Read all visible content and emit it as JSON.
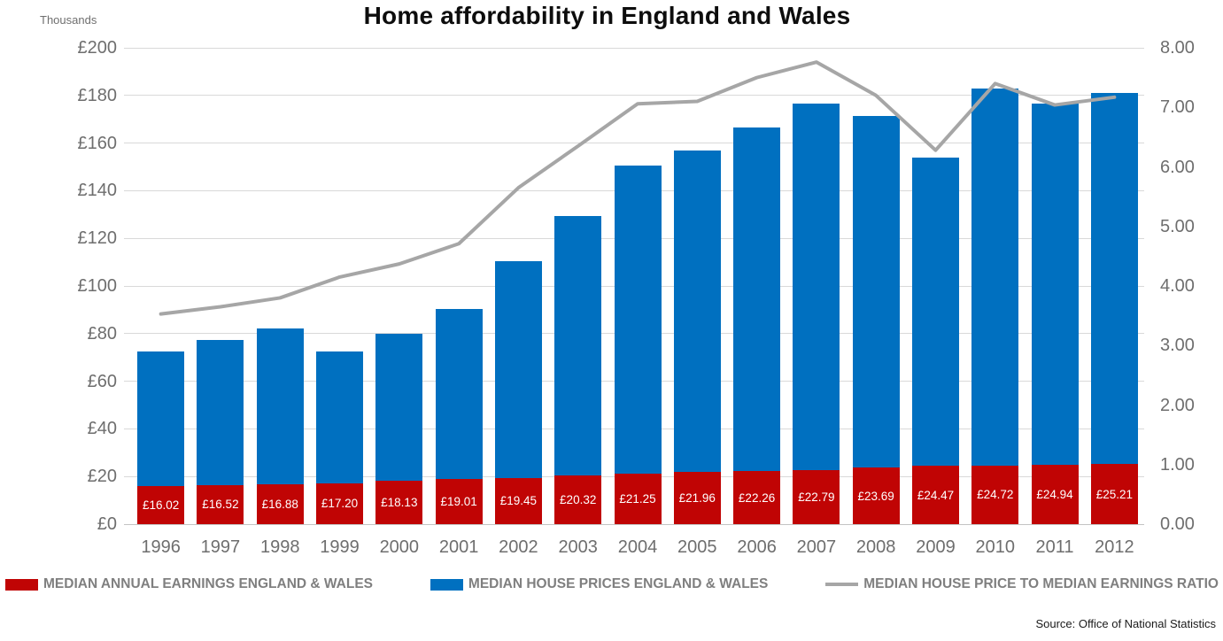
{
  "chart_data": {
    "type": "bar",
    "title": "Home affordability in England and Wales",
    "source": "Source: Office of National Statistics",
    "categories": [
      "1996",
      "1997",
      "1998",
      "1999",
      "2000",
      "2001",
      "2002",
      "2003",
      "2004",
      "2005",
      "2006",
      "2007",
      "2008",
      "2009",
      "2010",
      "2011",
      "2012"
    ],
    "series": [
      {
        "name": "MEDIAN ANNUAL EARNINGS ENGLAND & WALES",
        "type": "bar",
        "axis": "left",
        "color": "#c00404",
        "values": [
          16.02,
          16.52,
          16.88,
          17.2,
          18.13,
          19.01,
          19.45,
          20.32,
          21.25,
          21.96,
          22.26,
          22.79,
          23.69,
          24.47,
          24.72,
          24.94,
          25.21
        ],
        "data_labels": [
          "£16.02",
          "£16.52",
          "£16.88",
          "£17.20",
          "£18.13",
          "£19.01",
          "£19.45",
          "£20.32",
          "£21.25",
          "£21.96",
          "£22.26",
          "£22.79",
          "£23.69",
          "£24.47",
          "£24.72",
          "£24.94",
          "£25.21"
        ]
      },
      {
        "name": "MEDIAN HOUSE PRICES ENGLAND & WALES",
        "type": "bar",
        "axis": "left",
        "color": "#0070c0",
        "values": [
          72.5,
          77.5,
          82,
          72.5,
          80,
          90.5,
          110.5,
          129.5,
          150.5,
          157,
          166.5,
          176.5,
          171.5,
          154,
          183,
          176.5,
          181
        ]
      },
      {
        "name": "MEDIAN HOUSE PRICE TO MEDIAN EARNINGS RATIO",
        "type": "line",
        "axis": "right",
        "color": "#a6a6a6",
        "values": [
          3.53,
          3.65,
          3.8,
          4.15,
          4.37,
          4.71,
          5.65,
          6.35,
          7.06,
          7.1,
          7.5,
          7.76,
          7.2,
          6.28,
          7.4,
          7.04,
          7.17
        ]
      }
    ],
    "left_axis": {
      "label": "Thousands",
      "min": 0,
      "max": 200,
      "step": 20,
      "ticks_top_to_bottom": [
        "£200",
        "£180",
        "£160",
        "£140",
        "£120",
        "£100",
        "£80",
        "£60",
        "£40",
        "£20",
        "£0"
      ]
    },
    "right_axis": {
      "min": 0,
      "max": 8,
      "step": 1,
      "ticks_top_to_bottom": [
        "8.00",
        "7.00",
        "6.00",
        "5.00",
        "4.00",
        "3.00",
        "2.00",
        "1.00",
        "0.00"
      ]
    },
    "grid": true,
    "legend_position": "bottom"
  }
}
